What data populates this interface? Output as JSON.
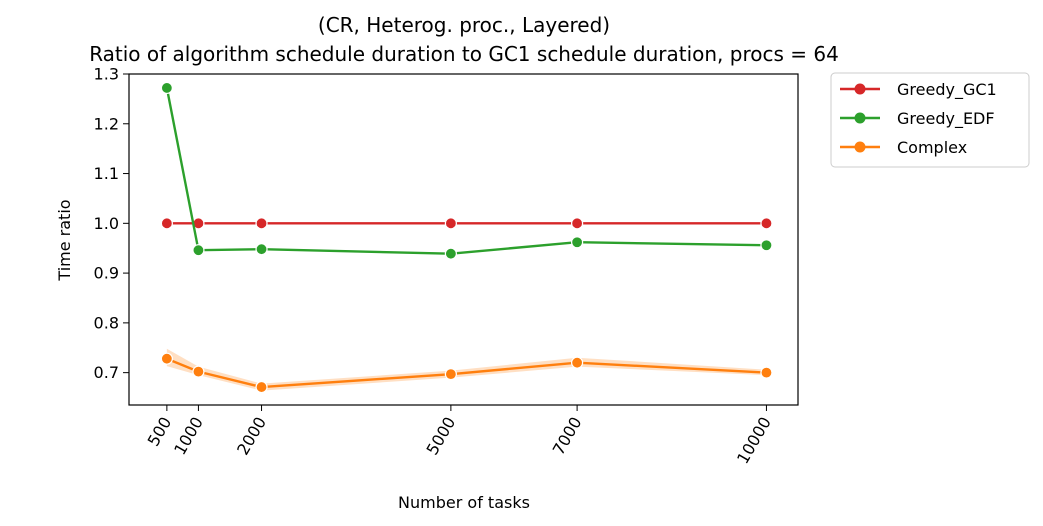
{
  "chart_data": {
    "type": "line",
    "title": "(CR, Heterog. proc., Layered)",
    "subtitle": "Ratio of algorithm schedule duration to GC1 schedule duration, procs = 64",
    "xlabel": "Number of tasks",
    "ylabel": "Time ratio",
    "x": [
      500,
      1000,
      2000,
      5000,
      7000,
      10000
    ],
    "xticks": [
      "500",
      "1000",
      "2000",
      "5000",
      "7000",
      "10000"
    ],
    "yticks": [
      "0.7",
      "0.8",
      "0.9",
      "1.0",
      "1.1",
      "1.2",
      "1.3"
    ],
    "xlim": [
      -100,
      10500
    ],
    "ylim": [
      0.635,
      1.3
    ],
    "grid": false,
    "legend": "outside-top-right",
    "series": [
      {
        "name": "Greedy_GC1",
        "color": "#d62728",
        "values": [
          1.0,
          1.0,
          1.0,
          1.0,
          1.0,
          1.0
        ]
      },
      {
        "name": "Greedy_EDF",
        "color": "#2ca02c",
        "values": [
          1.272,
          0.946,
          0.948,
          0.939,
          0.962,
          0.956
        ]
      },
      {
        "name": "Complex",
        "color": "#ff7f0e",
        "values": [
          0.728,
          0.702,
          0.671,
          0.697,
          0.72,
          0.7
        ],
        "band_low": [
          0.713,
          0.695,
          0.664,
          0.69,
          0.712,
          0.695
        ],
        "band_high": [
          0.748,
          0.712,
          0.678,
          0.704,
          0.73,
          0.706
        ]
      }
    ]
  }
}
